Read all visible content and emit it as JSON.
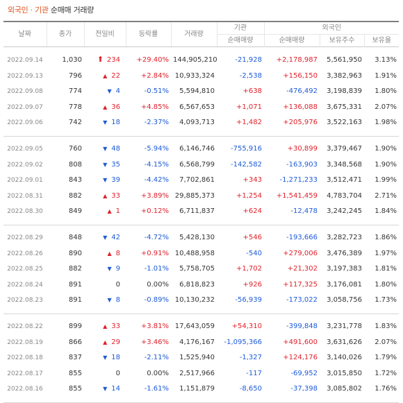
{
  "title": {
    "part1": "외국인",
    "separator": "·",
    "part2": "기관",
    "part3": "순매매 거래량"
  },
  "headers": {
    "date": "날짜",
    "close": "종가",
    "change": "전일비",
    "rate": "등락률",
    "volume": "거래량",
    "institution": "기관",
    "foreign": "외국인",
    "inst_net": "순매매량",
    "foreign_net": "순매매량",
    "holdings": "보유주수",
    "ratio": "보유율"
  },
  "icons": {
    "up": "up-triangle-icon",
    "down": "down-triangle-icon",
    "limit_up": "limit-up-arrow-icon"
  },
  "colors": {
    "up": "#e0202a",
    "down": "#1c5ad8",
    "title_accent": "#e2501c"
  },
  "groups": [
    {
      "rows": [
        {
          "date": "2022.09.14",
          "close": "1,030",
          "dir": "limit",
          "change": "234",
          "rate": "+29.40%",
          "volume": "144,905,210",
          "inst": "-21,928",
          "foreign": "+2,178,987",
          "holdings": "5,561,950",
          "ratio": "3.13%"
        },
        {
          "date": "2022.09.13",
          "close": "796",
          "dir": "up",
          "change": "22",
          "rate": "+2.84%",
          "volume": "10,933,324",
          "inst": "-2,538",
          "foreign": "+156,150",
          "holdings": "3,382,963",
          "ratio": "1.91%"
        },
        {
          "date": "2022.09.08",
          "close": "774",
          "dir": "down",
          "change": "4",
          "rate": "-0.51%",
          "volume": "5,594,810",
          "inst": "+638",
          "foreign": "-476,492",
          "holdings": "3,198,839",
          "ratio": "1.80%"
        },
        {
          "date": "2022.09.07",
          "close": "778",
          "dir": "up",
          "change": "36",
          "rate": "+4.85%",
          "volume": "6,567,653",
          "inst": "+1,071",
          "foreign": "+136,088",
          "holdings": "3,675,331",
          "ratio": "2.07%"
        },
        {
          "date": "2022.09.06",
          "close": "742",
          "dir": "down",
          "change": "18",
          "rate": "-2.37%",
          "volume": "4,093,713",
          "inst": "+1,482",
          "foreign": "+205,976",
          "holdings": "3,522,163",
          "ratio": "1.98%"
        }
      ]
    },
    {
      "rows": [
        {
          "date": "2022.09.05",
          "close": "760",
          "dir": "down",
          "change": "48",
          "rate": "-5.94%",
          "volume": "6,146,746",
          "inst": "-755,916",
          "foreign": "+30,899",
          "holdings": "3,379,467",
          "ratio": "1.90%"
        },
        {
          "date": "2022.09.02",
          "close": "808",
          "dir": "down",
          "change": "35",
          "rate": "-4.15%",
          "volume": "6,568,799",
          "inst": "-142,582",
          "foreign": "-163,903",
          "holdings": "3,348,568",
          "ratio": "1.90%"
        },
        {
          "date": "2022.09.01",
          "close": "843",
          "dir": "down",
          "change": "39",
          "rate": "-4.42%",
          "volume": "7,702,861",
          "inst": "+343",
          "foreign": "-1,271,233",
          "holdings": "3,512,471",
          "ratio": "1.99%"
        },
        {
          "date": "2022.08.31",
          "close": "882",
          "dir": "up",
          "change": "33",
          "rate": "+3.89%",
          "volume": "29,885,373",
          "inst": "+1,254",
          "foreign": "+1,541,459",
          "holdings": "4,783,704",
          "ratio": "2.71%"
        },
        {
          "date": "2022.08.30",
          "close": "849",
          "dir": "up",
          "change": "1",
          "rate": "+0.12%",
          "volume": "6,711,837",
          "inst": "+624",
          "foreign": "-12,478",
          "holdings": "3,242,245",
          "ratio": "1.84%"
        }
      ]
    },
    {
      "rows": [
        {
          "date": "2022.08.29",
          "close": "848",
          "dir": "down",
          "change": "42",
          "rate": "-4.72%",
          "volume": "5,428,130",
          "inst": "+546",
          "foreign": "-193,666",
          "holdings": "3,282,723",
          "ratio": "1.86%"
        },
        {
          "date": "2022.08.26",
          "close": "890",
          "dir": "up",
          "change": "8",
          "rate": "+0.91%",
          "volume": "10,488,958",
          "inst": "-540",
          "foreign": "+279,006",
          "holdings": "3,476,389",
          "ratio": "1.97%"
        },
        {
          "date": "2022.08.25",
          "close": "882",
          "dir": "down",
          "change": "9",
          "rate": "-1.01%",
          "volume": "5,758,705",
          "inst": "+1,702",
          "foreign": "+21,302",
          "holdings": "3,197,383",
          "ratio": "1.81%"
        },
        {
          "date": "2022.08.24",
          "close": "891",
          "dir": "flat",
          "change": "0",
          "rate": "0.00%",
          "volume": "6,818,823",
          "inst": "+926",
          "foreign": "+117,325",
          "holdings": "3,176,081",
          "ratio": "1.80%"
        },
        {
          "date": "2022.08.23",
          "close": "891",
          "dir": "down",
          "change": "8",
          "rate": "-0.89%",
          "volume": "10,130,232",
          "inst": "-56,939",
          "foreign": "-173,022",
          "holdings": "3,058,756",
          "ratio": "1.73%"
        }
      ]
    },
    {
      "rows": [
        {
          "date": "2022.08.22",
          "close": "899",
          "dir": "up",
          "change": "33",
          "rate": "+3.81%",
          "volume": "17,643,059",
          "inst": "+54,310",
          "foreign": "-399,848",
          "holdings": "3,231,778",
          "ratio": "1.83%"
        },
        {
          "date": "2022.08.19",
          "close": "866",
          "dir": "up",
          "change": "29",
          "rate": "+3.46%",
          "volume": "4,176,167",
          "inst": "-1,095,366",
          "foreign": "+491,600",
          "holdings": "3,631,626",
          "ratio": "2.07%"
        },
        {
          "date": "2022.08.18",
          "close": "837",
          "dir": "down",
          "change": "18",
          "rate": "-2.11%",
          "volume": "1,525,940",
          "inst": "-1,327",
          "foreign": "+124,176",
          "holdings": "3,140,026",
          "ratio": "1.79%"
        },
        {
          "date": "2022.08.17",
          "close": "855",
          "dir": "flat",
          "change": "0",
          "rate": "0.00%",
          "volume": "2,517,966",
          "inst": "-117",
          "foreign": "-69,952",
          "holdings": "3,015,850",
          "ratio": "1.72%"
        },
        {
          "date": "2022.08.16",
          "close": "855",
          "dir": "down",
          "change": "14",
          "rate": "-1.61%",
          "volume": "1,151,879",
          "inst": "-8,650",
          "foreign": "-37,398",
          "holdings": "3,085,802",
          "ratio": "1.76%"
        }
      ]
    }
  ]
}
